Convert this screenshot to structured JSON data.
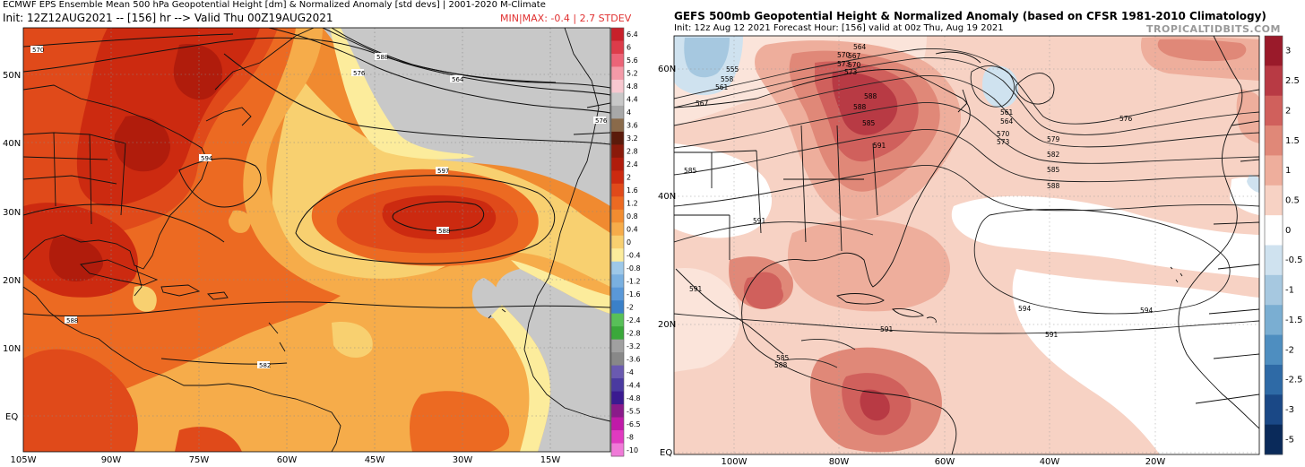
{
  "left": {
    "title": "ECMWF EPS Ensemble Mean 500 hPa Geopotential Height [dm] & Normalized Anomaly [std devs] | 2001-2020 M-Climate",
    "subtitle": "Init: 12Z12AUG2021 -- [156] hr --> Valid Thu 00Z19AUG2021",
    "minmax": "MIN|MAX: -0.4 | 2.7 STDEV",
    "lat_labels": [
      "50N",
      "40N",
      "30N",
      "20N",
      "10N",
      "EQ"
    ],
    "lon_labels": [
      "105W",
      "90W",
      "75W",
      "60W",
      "45W",
      "30W",
      "15W"
    ],
    "contour_labels": [
      "570",
      "576",
      "564",
      "588",
      "594",
      "597",
      "588",
      "588",
      "582",
      "576"
    ],
    "colorbar": {
      "labels": [
        "6.4",
        "6",
        "5.6",
        "5.2",
        "4.8",
        "4.4",
        "4",
        "3.6",
        "3.2",
        "2.8",
        "2.4",
        "2",
        "1.6",
        "1.2",
        "0.8",
        "0.4",
        "0",
        "-0.4",
        "-0.8",
        "-1.2",
        "-1.6",
        "-2",
        "-2.4",
        "-2.8",
        "-3.2",
        "-3.6",
        "-4",
        "-4.4",
        "-4.8",
        "-5.5",
        "-6.5",
        "-8",
        "-10"
      ],
      "colors": [
        "#c8202a",
        "#dc3c4a",
        "#ec6478",
        "#f49aa8",
        "#f8c8d0",
        "#c8c8c8",
        "#a8a8a8",
        "#8a6a4a",
        "#5a1a0a",
        "#8a1a0a",
        "#b01c0c",
        "#cc2a10",
        "#e04a1a",
        "#ec6a22",
        "#f28c30",
        "#f6ac4a",
        "#f8d070",
        "#fcec9c",
        "#9ec8e8",
        "#7ab0e0",
        "#5a98d8",
        "#3a80c8",
        "#58c058",
        "#3aa83a",
        "#a0a0a0",
        "#888888",
        "#6a5ab0",
        "#4a3aa0",
        "#3a1a90",
        "#8a1a8a",
        "#c01aa8",
        "#e03ac0",
        "#f07ad8"
      ]
    }
  },
  "right": {
    "title": "GEFS 500mb Geopotential Height & Normalized Anomaly (based on CFSR 1981-2010 Climatology)",
    "subtitle": "Init: 12z Aug 12 2021   Forecast Hour: [156]   valid at 00z Thu, Aug 19 2021",
    "watermark": "TROPICALTIDBITS.COM",
    "lat_labels": [
      "60N",
      "40N",
      "20N",
      "EQ"
    ],
    "lon_labels": [
      "100W",
      "80W",
      "60W",
      "40W",
      "20W"
    ],
    "contour_labels": [
      "555",
      "558",
      "561",
      "567",
      "564",
      "567",
      "570",
      "573",
      "585",
      "588",
      "591",
      "561",
      "564",
      "570",
      "573",
      "576",
      "579",
      "582",
      "585",
      "588",
      "570",
      "573",
      "591",
      "594",
      "594",
      "591",
      "591",
      "585",
      "588",
      "591",
      "588",
      "585"
    ],
    "colorbar": {
      "labels": [
        "3",
        "2.5",
        "2",
        "1.5",
        "1",
        "0.5",
        "0",
        "-0.5",
        "-1",
        "-1.5",
        "-2",
        "-2.5",
        "-3",
        "-5"
      ],
      "colors": [
        "#9a1a2a",
        "#b83a44",
        "#d0605c",
        "#e08878",
        "#eeae9c",
        "#f7d2c4",
        "#ffffff",
        "#cfe2ef",
        "#a6c8e0",
        "#7aaed2",
        "#4e8ec0",
        "#2e6aa6",
        "#1a4886",
        "#0a2a5a"
      ]
    }
  }
}
